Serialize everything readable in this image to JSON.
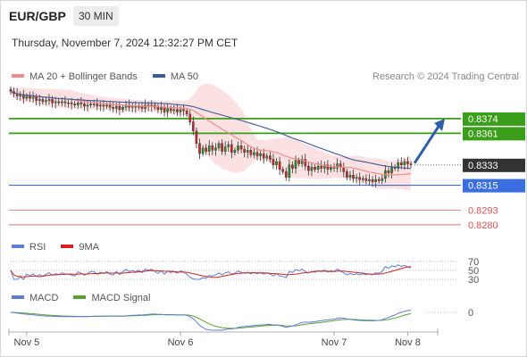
{
  "header": {
    "symbol": "EUR/GBP",
    "timeframe": "30 MIN",
    "datetime": "Thursday, November 7, 2024 12:32:27 PM CET"
  },
  "main_legend": [
    {
      "label": "MA 20 + Bollinger Bands",
      "color": "#f08c8c"
    },
    {
      "label": "MA 50",
      "color": "#3c5a99"
    }
  ],
  "credit": "Research © 2024 Trading Central",
  "colors": {
    "resistance": "#3a9e1a",
    "support": "#3b6fe0",
    "minor_level": "#e05555",
    "candle_up": "#2e8b2e",
    "candle_down": "#c62828",
    "current_price_bg": "#333333",
    "arrow": "#2f5fa8"
  },
  "chart_data": [
    {
      "type": "candlestick",
      "panel": "price",
      "ylim": [
        0.8272,
        0.84
      ],
      "x_ticks": [
        {
          "label": "Nov 5",
          "x": 5
        },
        {
          "label": "Nov 6",
          "x": 53
        },
        {
          "label": "Nov 7",
          "x": 101
        },
        {
          "label": "Nov 8",
          "x": 124
        }
      ],
      "x_range": [
        0,
        130
      ],
      "close": [
        0.8398,
        0.8396,
        0.8394,
        0.8395,
        0.8392,
        0.8394,
        0.8392,
        0.8393,
        0.839,
        0.8391,
        0.8389,
        0.839,
        0.8391,
        0.8388,
        0.8389,
        0.8388,
        0.8389,
        0.8388,
        0.8388,
        0.8387,
        0.8386,
        0.8388,
        0.8387,
        0.8385,
        0.8386,
        0.8387,
        0.8387,
        0.8385,
        0.8386,
        0.8385,
        0.8386,
        0.8384,
        0.8383,
        0.8385,
        0.8382,
        0.8384,
        0.8386,
        0.8384,
        0.8385,
        0.8384,
        0.8385,
        0.8383,
        0.8386,
        0.8385,
        0.8386,
        0.8384,
        0.8382,
        0.8384,
        0.838,
        0.8383,
        0.8381,
        0.8382,
        0.838,
        0.8382,
        0.8381,
        0.8378,
        0.8371,
        0.8363,
        0.8352,
        0.8343,
        0.8348,
        0.8345,
        0.835,
        0.8346,
        0.8348,
        0.8352,
        0.8345,
        0.8349,
        0.8351,
        0.8344,
        0.8346,
        0.835,
        0.8347,
        0.8344,
        0.8346,
        0.8342,
        0.8344,
        0.8341,
        0.8343,
        0.8339,
        0.8341,
        0.8338,
        0.8333,
        0.8336,
        0.8329,
        0.8327,
        0.8322,
        0.8333,
        0.833,
        0.8337,
        0.8334,
        0.8338,
        0.8332,
        0.8328,
        0.8331,
        0.8329,
        0.8332,
        0.833,
        0.8333,
        0.8329,
        0.8331,
        0.833,
        0.8334,
        0.8331,
        0.8327,
        0.8322,
        0.8324,
        0.8321,
        0.8322,
        0.832,
        0.8321,
        0.8319,
        0.832,
        0.8318,
        0.832,
        0.8319,
        0.8321,
        0.8328,
        0.8326,
        0.8331,
        0.833,
        0.8335,
        0.8333,
        0.8336,
        0.8334,
        0.8333
      ],
      "levels": [
        {
          "label": "0.8374",
          "value": 0.8374,
          "kind": "resistance"
        },
        {
          "label": "0.8361",
          "value": 0.8361,
          "kind": "resistance"
        },
        {
          "label": "0.8333",
          "value": 0.8333,
          "kind": "current"
        },
        {
          "label": "0.8315",
          "value": 0.8315,
          "kind": "support"
        },
        {
          "label": "0.8293",
          "value": 0.8293,
          "kind": "minor"
        },
        {
          "label": "0.8280",
          "value": 0.828,
          "kind": "minor"
        }
      ],
      "series": [
        {
          "name": "MA 20 + Bollinger Bands"
        },
        {
          "name": "MA 50"
        }
      ]
    },
    {
      "type": "line",
      "panel": "rsi",
      "legend": [
        {
          "label": "RSI",
          "color": "#5b7fd6"
        },
        {
          "label": "9MA",
          "color": "#d62020"
        }
      ],
      "y_ticks": [
        {
          "label": "70",
          "value": 70
        },
        {
          "label": "50",
          "value": 50
        },
        {
          "label": "30",
          "value": 30
        }
      ],
      "ylim": [
        20,
        80
      ]
    },
    {
      "type": "line",
      "panel": "macd",
      "legend": [
        {
          "label": "MACD",
          "color": "#5b7fd6"
        },
        {
          "label": "MACD Signal",
          "color": "#5aa02c"
        }
      ],
      "y_ticks": [
        {
          "label": "0",
          "value": 0
        }
      ],
      "ylim": [
        -0.001,
        0.0006
      ]
    }
  ]
}
